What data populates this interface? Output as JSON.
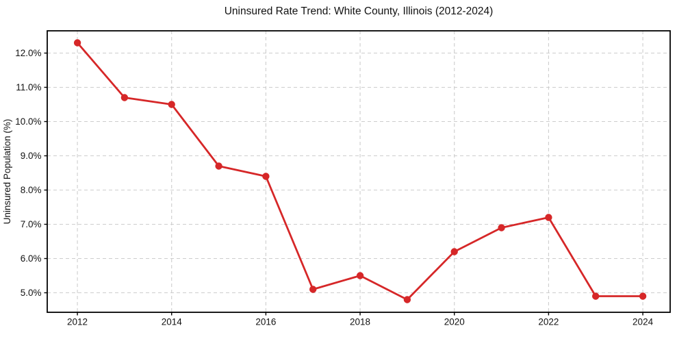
{
  "chart_data": {
    "type": "line",
    "title": "Uninsured Rate Trend: White County, Illinois (2012-2024)",
    "xlabel": "",
    "ylabel": "Uninsured Population (%)",
    "x": [
      2012,
      2013,
      2014,
      2015,
      2016,
      2017,
      2018,
      2019,
      2020,
      2021,
      2022,
      2023,
      2024
    ],
    "values": [
      12.3,
      10.7,
      10.5,
      8.7,
      8.4,
      5.1,
      5.5,
      4.8,
      6.2,
      6.9,
      7.2,
      4.9,
      4.9
    ],
    "x_ticks": [
      2012,
      2014,
      2016,
      2018,
      2020,
      2022,
      2024
    ],
    "x_tick_labels": [
      "2012",
      "2014",
      "2016",
      "2018",
      "2020",
      "2022",
      "2024"
    ],
    "y_ticks": [
      5,
      6,
      7,
      8,
      9,
      10,
      11,
      12
    ],
    "y_tick_labels": [
      "5.0%",
      "6.0%",
      "7.0%",
      "8.0%",
      "9.0%",
      "10.0%",
      "11.0%",
      "12.0%"
    ],
    "xlim": [
      2011.36,
      2024.58
    ],
    "ylim": [
      4.43,
      12.65
    ],
    "grid": true,
    "legend": "none",
    "line_color": "#d62728",
    "marker_color": "#d62728",
    "grid_color": "#cdcdcd",
    "axis_color": "#000000",
    "background_color": "#ffffff"
  }
}
